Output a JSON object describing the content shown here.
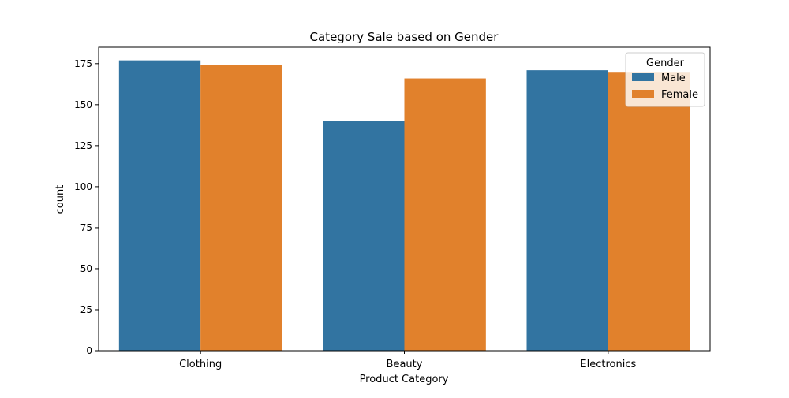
{
  "chart_data": {
    "type": "bar",
    "title": "Category Sale based on Gender",
    "xlabel": "Product Category",
    "ylabel": "count",
    "categories": [
      "Clothing",
      "Beauty",
      "Electronics"
    ],
    "series": [
      {
        "name": "Male",
        "color": "#3274a1",
        "values": [
          177,
          140,
          171
        ]
      },
      {
        "name": "Female",
        "color": "#e1812c",
        "values": [
          174,
          166,
          170
        ]
      }
    ],
    "ylim": [
      0,
      185
    ],
    "yticks": [
      0,
      25,
      50,
      75,
      100,
      125,
      150,
      175
    ],
    "legend": {
      "title": "Gender",
      "position": "top-right"
    },
    "grid": false
  }
}
